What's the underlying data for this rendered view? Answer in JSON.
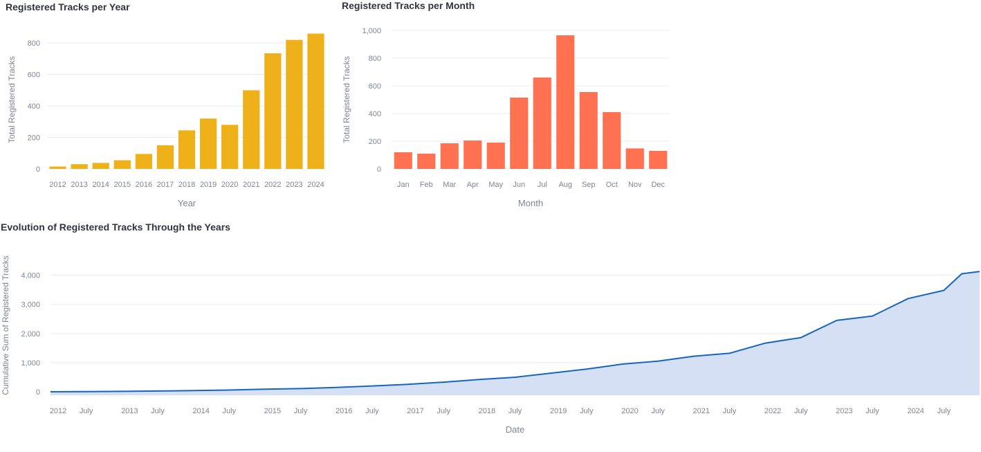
{
  "chart_data": [
    {
      "type": "bar",
      "title": "Registered Tracks per Year",
      "xlabel": "Year",
      "ylabel": "Total Registered Tracks",
      "categories": [
        "2012",
        "2013",
        "2014",
        "2015",
        "2016",
        "2017",
        "2018",
        "2019",
        "2020",
        "2021",
        "2022",
        "2023",
        "2024"
      ],
      "values": [
        15,
        30,
        38,
        55,
        95,
        150,
        245,
        320,
        280,
        500,
        735,
        820,
        860
      ],
      "ylim": [
        0,
        880
      ],
      "yticks": [
        0,
        200,
        400,
        600,
        800
      ],
      "ytick_labels": [
        "0",
        "200",
        "400",
        "600",
        "800"
      ],
      "color": "#EEB11A",
      "grid": true
    },
    {
      "type": "bar",
      "title": "Registered Tracks per Month",
      "xlabel": "Month",
      "ylabel": "Total Registered Tracks",
      "categories": [
        "Jan",
        "Feb",
        "Mar",
        "Apr",
        "May",
        "Jun",
        "Jul",
        "Aug",
        "Sep",
        "Oct",
        "Nov",
        "Dec"
      ],
      "values": [
        120,
        110,
        185,
        205,
        190,
        515,
        660,
        965,
        555,
        410,
        148,
        130
      ],
      "ylim": [
        0,
        1000
      ],
      "yticks": [
        0,
        200,
        400,
        600,
        800,
        1000
      ],
      "ytick_labels": [
        "0",
        "200",
        "400",
        "600",
        "800",
        "1,000"
      ],
      "color": "#FF7150",
      "grid": true
    },
    {
      "type": "area",
      "title": "Evolution of Registered Tracks Through the Years",
      "xlabel": "Date",
      "ylabel": "Cumulative Sum of Registered Tracks",
      "x": [
        "2012-01",
        "2012-07",
        "2013-01",
        "2013-07",
        "2014-01",
        "2014-07",
        "2015-01",
        "2015-07",
        "2016-01",
        "2016-07",
        "2017-01",
        "2017-07",
        "2018-01",
        "2018-07",
        "2019-01",
        "2019-07",
        "2020-01",
        "2020-07",
        "2021-01",
        "2021-07",
        "2022-01",
        "2022-07",
        "2023-01",
        "2023-07",
        "2024-01",
        "2024-07",
        "2024-10",
        "2024-12"
      ],
      "values": [
        0,
        5,
        15,
        25,
        40,
        60,
        90,
        110,
        150,
        200,
        255,
        330,
        420,
        500,
        640,
        780,
        950,
        1050,
        1220,
        1320,
        1670,
        1860,
        2450,
        2600,
        3200,
        3480,
        4050,
        4130
      ],
      "ylim": [
        0,
        4300
      ],
      "yticks": [
        0,
        1000,
        2000,
        3000,
        4000
      ],
      "ytick_labels": [
        "0",
        "1,000",
        "2,000",
        "3,000",
        "4,000"
      ],
      "xtick_labels": [
        "2012",
        "July",
        "2013",
        "July",
        "2014",
        "July",
        "2015",
        "July",
        "2016",
        "July",
        "2017",
        "July",
        "2018",
        "July",
        "2019",
        "July",
        "2020",
        "July",
        "2021",
        "July",
        "2022",
        "July",
        "2023",
        "July",
        "2024",
        "July"
      ],
      "line_color": "#1565C0",
      "fill_color": "#D6E0F5",
      "grid": true
    }
  ]
}
